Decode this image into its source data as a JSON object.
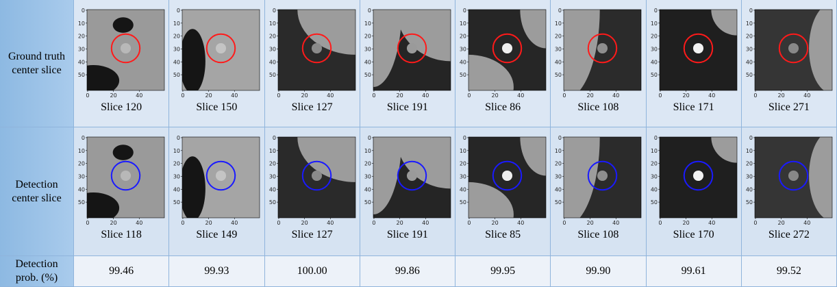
{
  "row_headers": [
    "Ground truth center slice",
    "Detection center slice",
    "Detection prob. (%)"
  ],
  "axis": {
    "yticks": [
      0,
      10,
      20,
      30,
      40,
      50
    ],
    "xticks": [
      0,
      20,
      40
    ]
  },
  "ground_truth_slices": [
    "Slice 120",
    "Slice 150",
    "Slice 127",
    "Slice 191",
    "Slice 86",
    "Slice 108",
    "Slice 171",
    "Slice 271"
  ],
  "detection_slices": [
    "Slice 118",
    "Slice 149",
    "Slice 127",
    "Slice 191",
    "Slice 85",
    "Slice 108",
    "Slice 170",
    "Slice 272"
  ],
  "detection_prob": [
    "99.46",
    "99.93",
    "100.00",
    "99.86",
    "99.95",
    "99.90",
    "99.61",
    "99.52"
  ]
}
